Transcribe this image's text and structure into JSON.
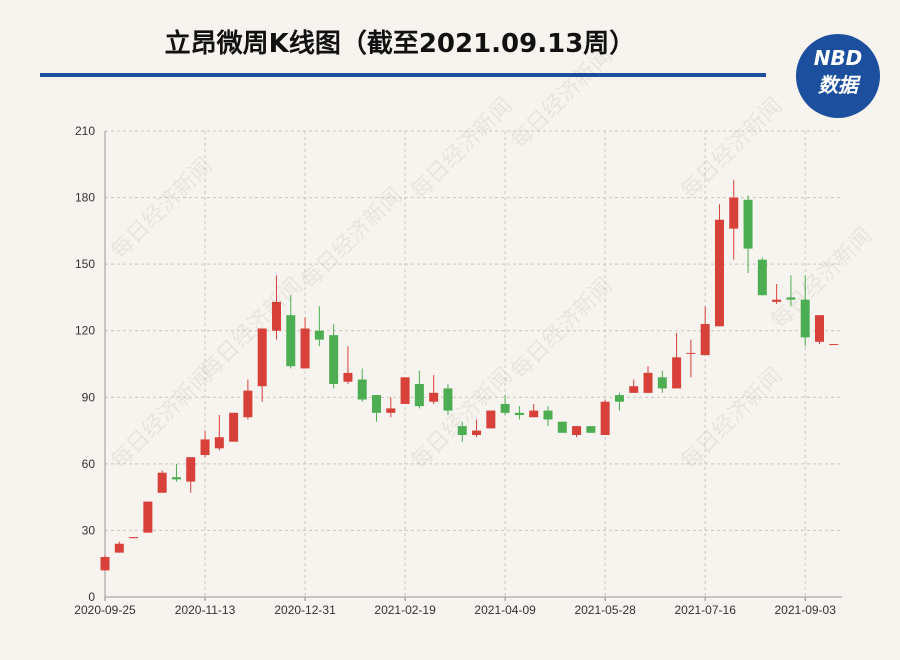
{
  "chart_data": {
    "type": "candlestick",
    "title": "立昂微周K线图（截至2021.09.13周）",
    "logo": {
      "top": "NBD",
      "bottom": "数据"
    },
    "watermark": "每日经济新闻",
    "categories": [
      "2020-09-25",
      null,
      null,
      null,
      null,
      null,
      null,
      "2020-11-13",
      null,
      null,
      null,
      null,
      null,
      null,
      "2020-12-31",
      null,
      null,
      null,
      null,
      null,
      null,
      "2021-02-19",
      null,
      null,
      null,
      null,
      null,
      null,
      "2021-04-09",
      null,
      null,
      null,
      null,
      null,
      null,
      "2021-05-28",
      null,
      null,
      null,
      null,
      null,
      null,
      "2021-07-16",
      null,
      null,
      null,
      null,
      null,
      null,
      "2021-09-03",
      null,
      null
    ],
    "open": [
      12,
      20,
      26.5,
      29,
      47,
      54,
      52,
      64,
      67,
      70,
      81,
      95,
      120,
      127,
      103,
      120,
      118,
      97,
      98,
      91,
      83,
      87,
      96,
      88,
      94,
      77,
      73,
      76,
      87,
      83,
      81,
      84,
      79,
      73,
      77,
      73,
      91,
      92,
      92,
      99,
      94,
      110,
      109,
      122,
      166,
      179,
      152,
      133,
      135,
      134,
      115,
      114
    ],
    "close": [
      18,
      24,
      27,
      43,
      56,
      53,
      63,
      71,
      72,
      83,
      93,
      121,
      133,
      104,
      121,
      116,
      96,
      101,
      89,
      83,
      85,
      99,
      86,
      92,
      84,
      73,
      75,
      84,
      83,
      82,
      84,
      80,
      74,
      77,
      74,
      88,
      88,
      95,
      101,
      94,
      108,
      110,
      123,
      170,
      180,
      157,
      136,
      134,
      134,
      117,
      127,
      114
    ],
    "high": [
      19,
      25,
      27,
      43,
      57,
      60,
      63,
      75,
      82,
      83,
      98,
      121,
      145,
      136,
      126,
      131,
      123,
      113,
      103,
      91,
      90,
      99,
      102,
      100,
      96,
      79,
      80,
      84,
      91,
      86,
      87,
      86,
      79,
      77,
      77,
      89,
      92,
      98,
      104,
      102,
      119,
      116,
      131,
      177,
      188,
      181,
      153,
      141,
      145,
      145,
      127,
      114
    ],
    "low": [
      12,
      20,
      26.5,
      29,
      47,
      52,
      47,
      63,
      66,
      70,
      80,
      88,
      116,
      103,
      103,
      113,
      94,
      96,
      88,
      79,
      81,
      87,
      85,
      87,
      82,
      70,
      72,
      76,
      82,
      80,
      81,
      77,
      74,
      72,
      74,
      73,
      84,
      92,
      92,
      92,
      94,
      99,
      109,
      122,
      152,
      146,
      136,
      132,
      131,
      113,
      114,
      114
    ],
    "up_color": "#d8403a",
    "down_color": "#4dad52",
    "ylim": [
      0,
      210
    ],
    "yticks": [
      0,
      30,
      60,
      90,
      120,
      150,
      180,
      210
    ],
    "grid": true
  }
}
